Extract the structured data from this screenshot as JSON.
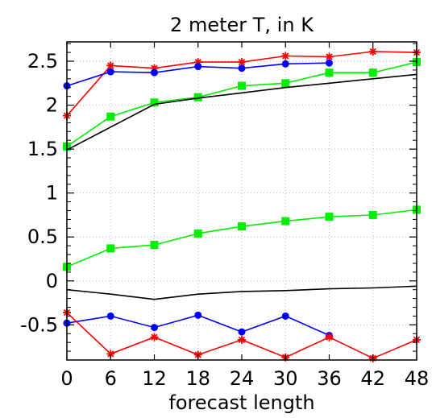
{
  "chart_data": {
    "type": "line",
    "title": "2 meter T, in K",
    "xlabel": "forecast length",
    "ylabel": "",
    "x": [
      0,
      6,
      12,
      18,
      24,
      30,
      36,
      42,
      48
    ],
    "xlim": [
      0,
      48
    ],
    "ylim": [
      -0.9,
      2.72
    ],
    "xticks": [
      "0",
      "6",
      "12",
      "18",
      "24",
      "30",
      "36",
      "42",
      "48"
    ],
    "yticks": [
      {
        "value": 2.5,
        "label": "2.5"
      },
      {
        "value": 2.0,
        "label": "2"
      },
      {
        "value": 1.5,
        "label": "1.5"
      },
      {
        "value": 1.0,
        "label": "1"
      },
      {
        "value": 0.5,
        "label": "0.5"
      },
      {
        "value": 0.0,
        "label": "0"
      },
      {
        "value": -0.5,
        "label": "-0.5"
      }
    ],
    "grid": true,
    "grid_style": "dotted",
    "legend": "none",
    "series": [
      {
        "color": "#ff0000",
        "marker": "star",
        "x": [
          0,
          6,
          12,
          18,
          24,
          30,
          36,
          42,
          48
        ],
        "values": [
          1.88,
          2.45,
          2.42,
          2.49,
          2.49,
          2.56,
          2.55,
          2.61,
          2.6
        ]
      },
      {
        "color": "#0000ff",
        "marker": "circle",
        "x": [
          0,
          6,
          12,
          18,
          24,
          30,
          36
        ],
        "values": [
          2.22,
          2.38,
          2.37,
          2.44,
          2.42,
          2.47,
          2.48
        ]
      },
      {
        "color": "#00ee00",
        "marker": "square",
        "x": [
          0,
          6,
          12,
          18,
          24,
          30,
          36,
          42,
          48
        ],
        "values": [
          1.53,
          1.87,
          2.03,
          2.09,
          2.22,
          2.25,
          2.37,
          2.37,
          2.49
        ]
      },
      {
        "color": "#000000",
        "marker": "none",
        "x": [
          0,
          6,
          12,
          18,
          24,
          30,
          36,
          42,
          48
        ],
        "values": [
          1.49,
          1.75,
          2.01,
          2.08,
          2.14,
          2.2,
          2.25,
          2.3,
          2.35
        ]
      },
      {
        "color": "#00ee00",
        "marker": "square",
        "x": [
          0,
          6,
          12,
          18,
          24,
          30,
          36,
          42,
          48
        ],
        "values": [
          0.16,
          0.37,
          0.41,
          0.54,
          0.62,
          0.68,
          0.73,
          0.75,
          0.81
        ]
      },
      {
        "color": "#000000",
        "marker": "none",
        "x": [
          0,
          6,
          12,
          18,
          24,
          30,
          36,
          42,
          48
        ],
        "values": [
          -0.1,
          -0.15,
          -0.21,
          -0.15,
          -0.12,
          -0.11,
          -0.09,
          -0.08,
          -0.06
        ]
      },
      {
        "color": "#0000ff",
        "marker": "circle",
        "x": [
          0,
          6,
          12,
          18,
          24,
          30,
          36
        ],
        "values": [
          -0.48,
          -0.4,
          -0.53,
          -0.39,
          -0.58,
          -0.4,
          -0.62
        ]
      },
      {
        "color": "#ff0000",
        "marker": "star",
        "x": [
          0,
          6,
          12,
          18,
          24,
          30,
          36,
          42,
          48
        ],
        "values": [
          -0.36,
          -0.83,
          -0.64,
          -0.84,
          -0.67,
          -0.87,
          -0.64,
          -0.88,
          -0.67
        ]
      }
    ]
  }
}
